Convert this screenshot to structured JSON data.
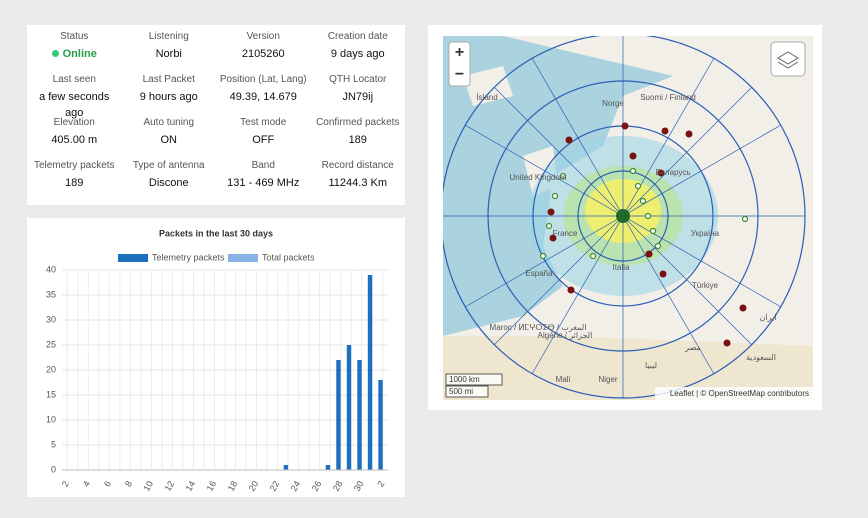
{
  "info": [
    {
      "label": "Status",
      "value": "Online"
    },
    {
      "label": "Listening",
      "value": "Norbi"
    },
    {
      "label": "Version",
      "value": "2105260"
    },
    {
      "label": "Creation date",
      "value": "9 days ago"
    },
    {
      "label": "Last seen",
      "value": "a few seconds ago"
    },
    {
      "label": "Last Packet",
      "value": "9 hours ago"
    },
    {
      "label": "Position (Lat, Lang)",
      "value": "49.39, 14.679"
    },
    {
      "label": "QTH Locator",
      "value": "JN79ij"
    },
    {
      "label": "Elevation",
      "value": "405.00 m"
    },
    {
      "label": "Auto tuning",
      "value": "ON"
    },
    {
      "label": "Test mode",
      "value": "OFF"
    },
    {
      "label": "Confirmed packets",
      "value": "189"
    },
    {
      "label": "Telemetry packets",
      "value": "189"
    },
    {
      "label": "Type of antenna",
      "value": "Discone"
    },
    {
      "label": "Band",
      "value": "131 - 469 MHz"
    },
    {
      "label": "Record distance",
      "value": "11244.3 Km"
    }
  ],
  "chart_data": {
    "type": "bar",
    "title": "Packets in the last 30 days",
    "categories": [
      "2",
      null,
      "4",
      null,
      "6",
      null,
      "8",
      null,
      "10",
      null,
      "12",
      null,
      "14",
      null,
      "16",
      null,
      "18",
      null,
      "20",
      null,
      "22",
      null,
      "24",
      null,
      "26",
      null,
      "28",
      null,
      "30",
      null,
      "2"
    ],
    "series": [
      {
        "name": "Telemetry packets",
        "color": "#1f6fbf",
        "values": [
          0,
          0,
          0,
          0,
          0,
          0,
          0,
          0,
          0,
          0,
          0,
          0,
          0,
          0,
          0,
          0,
          0,
          0,
          0,
          0,
          0,
          1,
          0,
          0,
          0,
          1,
          22,
          25,
          22,
          39,
          18
        ]
      },
      {
        "name": "Total packets",
        "color": "#86b3e3",
        "values": [
          null,
          null,
          null,
          null,
          null,
          null,
          null,
          null,
          null,
          null,
          null,
          null,
          null,
          null,
          null,
          null,
          null,
          null,
          null,
          null,
          null,
          null,
          null,
          null,
          null,
          null,
          null,
          null,
          null,
          null,
          null
        ]
      }
    ],
    "ylim": [
      0,
      40
    ],
    "yticks": [
      0,
      5,
      10,
      15,
      20,
      25,
      30,
      35,
      40
    ],
    "grid": true
  },
  "map": {
    "zoom_in": "+",
    "zoom_out": "−",
    "places": [
      "Ísland",
      "Norge",
      "Suomi / Finland",
      "United Kingdom",
      "Беларусь",
      "France",
      "Україна",
      "España",
      "Italia",
      "Türkiye",
      "Maroc / ⵍⵎⵖⵔⵉⴱ / المغرب",
      "Algérie / الجزائر",
      "ليبيا",
      "مصر",
      "ایران",
      "السعودية",
      "Mali",
      "Niger"
    ],
    "scale_km": "1000 km",
    "scale_mi": "500 mi",
    "attribution": "Leaflet | © OpenStreetMap contributors"
  }
}
